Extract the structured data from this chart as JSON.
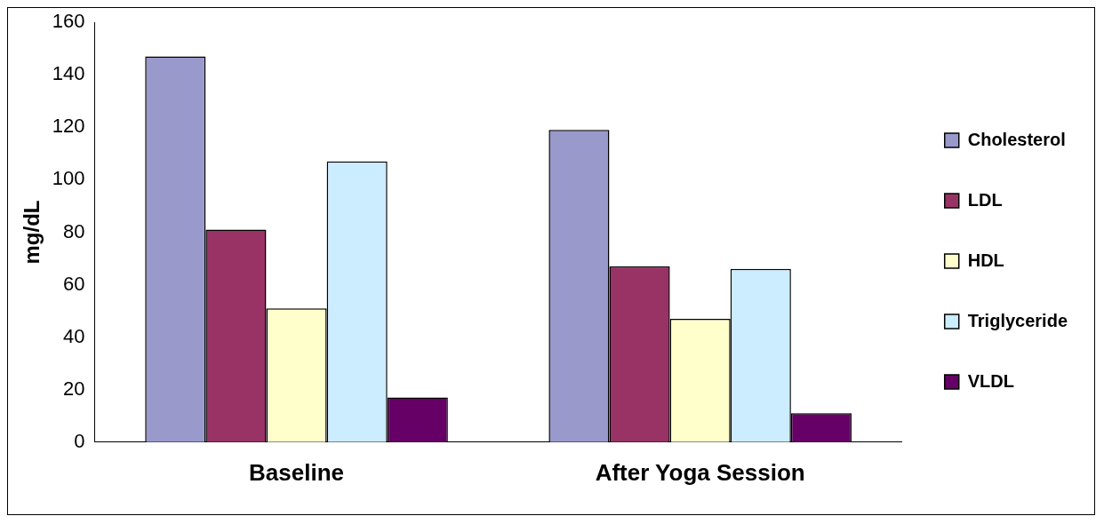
{
  "chart_data": {
    "type": "bar",
    "ylabel": "mg/dL",
    "categories": [
      "Baseline",
      "After Yoga Session"
    ],
    "series": [
      {
        "name": "Cholesterol",
        "color": "#9999cc",
        "values": [
          147,
          119
        ]
      },
      {
        "name": "LDL",
        "color": "#993366",
        "values": [
          81,
          67
        ]
      },
      {
        "name": "HDL",
        "color": "#ffffcc",
        "values": [
          51,
          47
        ]
      },
      {
        "name": "Triglyceride",
        "color": "#ccecff",
        "values": [
          107,
          66
        ]
      },
      {
        "name": "VLDL",
        "color": "#660066",
        "values": [
          17,
          11
        ]
      }
    ],
    "ylim": [
      0,
      160
    ],
    "yticks": [
      0,
      20,
      40,
      60,
      80,
      100,
      120,
      140,
      160
    ],
    "grid": false,
    "legend": "right"
  }
}
